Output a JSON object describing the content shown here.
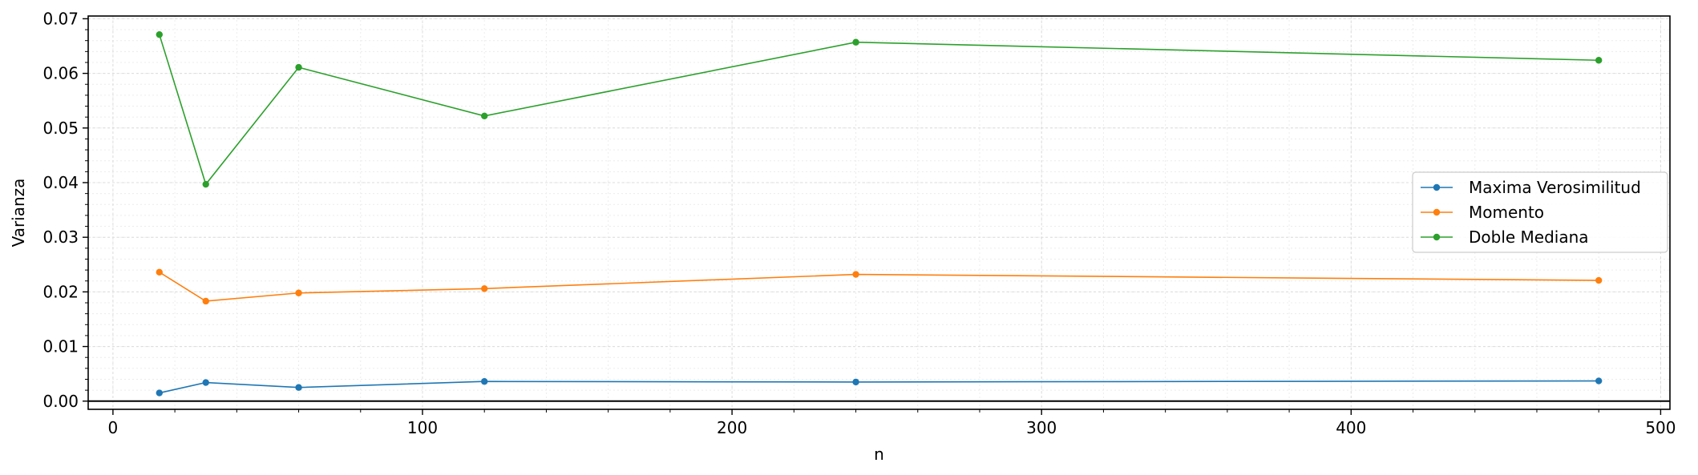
{
  "chart_data": {
    "type": "line",
    "title": "",
    "xlabel": "n",
    "ylabel": "Varianza",
    "xlim": [
      -8,
      503
    ],
    "ylim": [
      -0.0015,
      0.0705
    ],
    "x": [
      15,
      30,
      60,
      120,
      240,
      480
    ],
    "x_ticks": [
      0,
      100,
      200,
      300,
      400,
      500
    ],
    "x_tick_labels": [
      "0",
      "100",
      "200",
      "300",
      "400",
      "500"
    ],
    "y_ticks": [
      0,
      0.01,
      0.02,
      0.03,
      0.04,
      0.05,
      0.06,
      0.07
    ],
    "y_tick_labels": [
      "0.00",
      "0.01",
      "0.02",
      "0.03",
      "0.04",
      "0.05",
      "0.06",
      "0.07"
    ],
    "grid": true,
    "minor_grid": true,
    "hline_y": 0,
    "legend_position": "center-right",
    "series": [
      {
        "name": "Maxima Verosimilitud",
        "color": "#1f77b4",
        "values": [
          0.0015,
          0.0034,
          0.0025,
          0.0036,
          0.0035,
          0.0037
        ]
      },
      {
        "name": "Momento",
        "color": "#ff7f0e",
        "values": [
          0.0236,
          0.0183,
          0.0198,
          0.0206,
          0.0232,
          0.0221
        ]
      },
      {
        "name": "Doble Mediana",
        "color": "#2ca02c",
        "values": [
          0.0671,
          0.0397,
          0.0611,
          0.0522,
          0.0657,
          0.0624
        ]
      }
    ]
  }
}
